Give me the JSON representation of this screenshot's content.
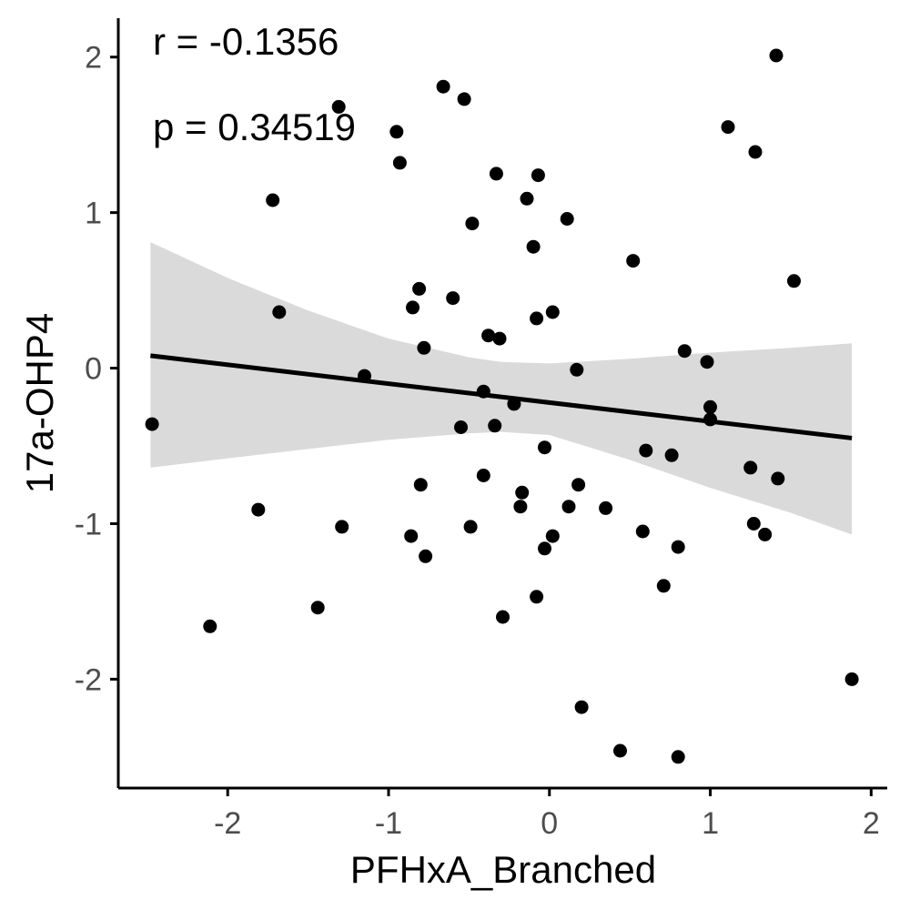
{
  "chart_data": {
    "type": "scatter",
    "title": "",
    "xlabel": "PFHxA_Branched",
    "ylabel": "17a-OHP4",
    "xlim": [
      -2.68,
      2.1
    ],
    "ylim": [
      -2.7,
      2.25
    ],
    "x_ticks": [
      -2,
      -1,
      0,
      1,
      2
    ],
    "x_tick_labels": [
      "-2",
      "-1",
      "0",
      "1",
      "2"
    ],
    "y_ticks": [
      -2,
      -1,
      0,
      1,
      2
    ],
    "y_tick_labels": [
      "-2",
      "-1",
      "0",
      "1",
      "2"
    ],
    "grid": false,
    "legend": "none",
    "annotations": [
      "r = -0.1356",
      "p = 0.34519"
    ],
    "colors": {
      "points": "#000000",
      "line": "#000000",
      "band": "#d4d4d4",
      "axis": "#000000",
      "tick_text": "#4d4d4d"
    },
    "regression": {
      "x": [
        -2.48,
        1.88
      ],
      "y": [
        0.08,
        -0.45
      ]
    },
    "confidence_band": {
      "x": [
        -2.48,
        -2.0,
        -1.5,
        -1.0,
        -0.5,
        -0.3,
        0.0,
        0.5,
        1.0,
        1.5,
        1.88
      ],
      "upper": [
        0.81,
        0.58,
        0.37,
        0.19,
        0.07,
        0.04,
        0.03,
        0.06,
        0.1,
        0.13,
        0.16
      ],
      "lower": [
        -0.64,
        -0.58,
        -0.52,
        -0.46,
        -0.42,
        -0.41,
        -0.43,
        -0.59,
        -0.77,
        -0.93,
        -1.07
      ]
    },
    "points": [
      {
        "x": -2.47,
        "y": -0.36
      },
      {
        "x": -2.11,
        "y": -1.66
      },
      {
        "x": -1.81,
        "y": -0.91
      },
      {
        "x": -1.72,
        "y": 1.08
      },
      {
        "x": -1.68,
        "y": 0.36
      },
      {
        "x": -1.44,
        "y": -1.54
      },
      {
        "x": -1.31,
        "y": 1.68
      },
      {
        "x": -1.29,
        "y": -1.02
      },
      {
        "x": -1.15,
        "y": -0.05
      },
      {
        "x": -0.95,
        "y": 1.52
      },
      {
        "x": -0.93,
        "y": 1.32
      },
      {
        "x": -0.86,
        "y": -1.08
      },
      {
        "x": -0.85,
        "y": 0.39
      },
      {
        "x": -0.81,
        "y": 0.51
      },
      {
        "x": -0.8,
        "y": -0.75
      },
      {
        "x": -0.78,
        "y": 0.13
      },
      {
        "x": -0.77,
        "y": -1.21
      },
      {
        "x": -0.66,
        "y": 1.81
      },
      {
        "x": -0.6,
        "y": 0.45
      },
      {
        "x": -0.55,
        "y": -0.38
      },
      {
        "x": -0.53,
        "y": 1.73
      },
      {
        "x": -0.49,
        "y": -1.02
      },
      {
        "x": -0.48,
        "y": 0.93
      },
      {
        "x": -0.41,
        "y": -0.69
      },
      {
        "x": -0.41,
        "y": -0.15
      },
      {
        "x": -0.38,
        "y": 0.21
      },
      {
        "x": -0.34,
        "y": -0.37
      },
      {
        "x": -0.33,
        "y": 1.25
      },
      {
        "x": -0.31,
        "y": 0.19
      },
      {
        "x": -0.29,
        "y": -1.6
      },
      {
        "x": -0.22,
        "y": -0.23
      },
      {
        "x": -0.17,
        "y": -0.8
      },
      {
        "x": -0.18,
        "y": -0.89
      },
      {
        "x": -0.14,
        "y": 1.09
      },
      {
        "x": -0.1,
        "y": 0.78
      },
      {
        "x": -0.08,
        "y": 0.32
      },
      {
        "x": -0.08,
        "y": -1.47
      },
      {
        "x": -0.07,
        "y": 1.24
      },
      {
        "x": -0.03,
        "y": -0.51
      },
      {
        "x": -0.03,
        "y": -1.16
      },
      {
        "x": 0.02,
        "y": 0.36
      },
      {
        "x": 0.02,
        "y": -1.08
      },
      {
        "x": 0.11,
        "y": 0.96
      },
      {
        "x": 0.12,
        "y": -0.89
      },
      {
        "x": 0.17,
        "y": -0.01
      },
      {
        "x": 0.18,
        "y": -0.75
      },
      {
        "x": 0.2,
        "y": -2.18
      },
      {
        "x": 0.35,
        "y": -0.9
      },
      {
        "x": 0.44,
        "y": -2.46
      },
      {
        "x": 0.52,
        "y": 0.69
      },
      {
        "x": 0.58,
        "y": -1.05
      },
      {
        "x": 0.6,
        "y": -0.53
      },
      {
        "x": 0.71,
        "y": -1.4
      },
      {
        "x": 0.76,
        "y": -0.56
      },
      {
        "x": 0.8,
        "y": -1.15
      },
      {
        "x": 0.8,
        "y": -2.5
      },
      {
        "x": 0.84,
        "y": 0.11
      },
      {
        "x": 0.98,
        "y": 0.04
      },
      {
        "x": 1.0,
        "y": -0.25
      },
      {
        "x": 1.0,
        "y": -0.33
      },
      {
        "x": 1.11,
        "y": 1.55
      },
      {
        "x": 1.25,
        "y": -0.64
      },
      {
        "x": 1.27,
        "y": -1.0
      },
      {
        "x": 1.28,
        "y": 1.39
      },
      {
        "x": 1.34,
        "y": -1.07
      },
      {
        "x": 1.41,
        "y": 2.01
      },
      {
        "x": 1.42,
        "y": -0.71
      },
      {
        "x": 1.52,
        "y": 0.56
      },
      {
        "x": 1.88,
        "y": -2.0
      }
    ]
  }
}
